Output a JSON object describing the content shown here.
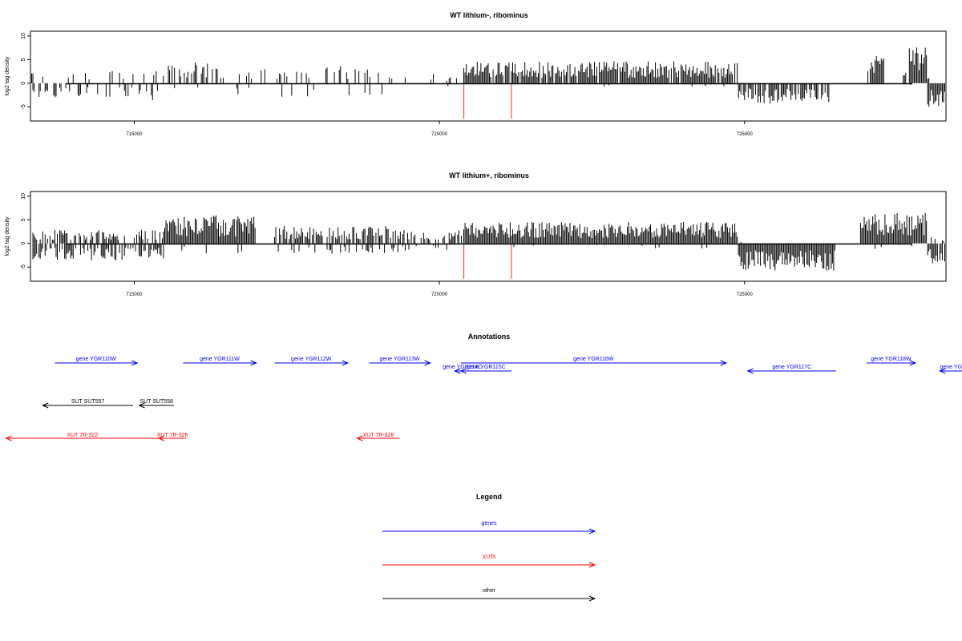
{
  "chart_data": [
    {
      "type": "bar",
      "title": "WT lithium-, ribominus",
      "ylabel": "log2 tag density",
      "xlim": [
        713300,
        728300
      ],
      "ylim": [
        -8,
        11
      ],
      "yticks": [
        -5,
        0,
        5,
        10
      ],
      "xticks": [
        715000,
        720000,
        725000
      ],
      "x_range": [
        713300,
        728300
      ],
      "markers": [
        720400,
        721180
      ],
      "segments": [
        {
          "start": 713300,
          "end": 715500,
          "prob": 0.1,
          "pos": 1.8,
          "neg": -2.5,
          "negprob": 0.35
        },
        {
          "start": 715500,
          "end": 716500,
          "prob": 0.45,
          "pos": 3.0,
          "neg": -0.8,
          "negprob": 0.05
        },
        {
          "start": 716500,
          "end": 719500,
          "prob": 0.25,
          "pos": 2.5,
          "neg": -2.0,
          "negprob": 0.1
        },
        {
          "start": 719500,
          "end": 720400,
          "prob": 0.15,
          "pos": 1.5,
          "neg": -1.0,
          "negprob": 0.05
        },
        {
          "start": 720400,
          "end": 724900,
          "prob": 0.9,
          "pos": 3.2,
          "neg": -0.5,
          "negprob": 0.02
        },
        {
          "start": 724900,
          "end": 726400,
          "prob": 0.0,
          "pos": 0.5,
          "neg": -3.0,
          "negprob": 0.8
        },
        {
          "start": 727000,
          "end": 727300,
          "prob": 0.9,
          "pos": 5.0,
          "neg": 0,
          "negprob": 0
        },
        {
          "start": 727300,
          "end": 727700,
          "prob": 0.2,
          "pos": 2.5,
          "neg": 0,
          "negprob": 0
        },
        {
          "start": 727700,
          "end": 728000,
          "prob": 1.0,
          "pos": 6.5,
          "neg": -0.5,
          "negprob": 0.05
        },
        {
          "start": 728000,
          "end": 728300,
          "prob": 0.1,
          "pos": 1.0,
          "neg": -3.5,
          "negprob": 0.85
        }
      ],
      "seed": 11
    },
    {
      "type": "bar",
      "title": "WT lithium+, ribominus",
      "ylabel": "log2 tag density",
      "xlim": [
        713300,
        728300
      ],
      "ylim": [
        -8,
        11
      ],
      "yticks": [
        -5,
        0,
        5,
        10
      ],
      "xticks": [
        715000,
        720000,
        725000
      ],
      "x_range": [
        713300,
        728300
      ],
      "markers": [
        720400,
        721180
      ],
      "segments": [
        {
          "start": 713300,
          "end": 715500,
          "prob": 0.55,
          "pos": 2.0,
          "neg": -2.5,
          "negprob": 0.65
        },
        {
          "start": 715500,
          "end": 717000,
          "prob": 1.0,
          "pos": 4.2,
          "neg": -1.5,
          "negprob": 0.1
        },
        {
          "start": 717300,
          "end": 719500,
          "prob": 0.8,
          "pos": 2.6,
          "neg": -1.5,
          "negprob": 0.3
        },
        {
          "start": 719500,
          "end": 720400,
          "prob": 0.55,
          "pos": 2.0,
          "neg": -1.0,
          "negprob": 0.15
        },
        {
          "start": 720400,
          "end": 724900,
          "prob": 1.0,
          "pos": 3.2,
          "neg": -0.8,
          "negprob": 0.05
        },
        {
          "start": 724900,
          "end": 726500,
          "prob": 0.05,
          "pos": 0.5,
          "neg": -4.0,
          "negprob": 1.0
        },
        {
          "start": 726900,
          "end": 728000,
          "prob": 1.0,
          "pos": 4.5,
          "neg": -0.8,
          "negprob": 0.05
        },
        {
          "start": 728000,
          "end": 728300,
          "prob": 0.2,
          "pos": 1.2,
          "neg": -3.0,
          "negprob": 0.9
        }
      ],
      "seed": 23
    }
  ],
  "annotations": {
    "title": "Annotations",
    "genes": [
      {
        "label": "gene YGR110W",
        "start": 713700,
        "end": 715050,
        "dir": "right",
        "row": 0
      },
      {
        "label": "gene YGR111W",
        "start": 715800,
        "end": 717000,
        "dir": "right",
        "row": 0
      },
      {
        "label": "gene YGR112W",
        "start": 717300,
        "end": 718500,
        "dir": "right",
        "row": 0
      },
      {
        "label": "gene YGR113W",
        "start": 718850,
        "end": 719850,
        "dir": "right",
        "row": 0
      },
      {
        "label": "gene YGR114C",
        "start": 720250,
        "end": 720500,
        "dir": "left",
        "row": 1
      },
      {
        "label": "gene YGR115C",
        "start": 720350,
        "end": 721180,
        "dir": "left",
        "row": 1
      },
      {
        "label": "gene YGR116W",
        "start": 720350,
        "end": 724700,
        "dir": "right",
        "row": 0
      },
      {
        "label": "gene YGR117C",
        "start": 725050,
        "end": 726500,
        "dir": "left",
        "row": 1
      },
      {
        "label": "gene YGR118W",
        "start": 727000,
        "end": 727800,
        "dir": "right",
        "row": 0
      },
      {
        "label": "gene YG",
        "start": 728200,
        "end": 729100,
        "dir": "left",
        "row": 1
      }
    ],
    "others": [
      {
        "label": "SUT SUT557",
        "start": 713500,
        "end": 714980,
        "dir": "left"
      },
      {
        "label": "SUT SUT558",
        "start": 715080,
        "end": 715650,
        "dir": "left"
      }
    ],
    "xuts": [
      {
        "label": "XUT 7R-322",
        "start": 712900,
        "end": 715400,
        "dir": "left"
      },
      {
        "label": "XUT 7R-326",
        "start": 715400,
        "end": 715850,
        "dir": "left"
      },
      {
        "label": "XUT 7R-328",
        "start": 718650,
        "end": 719350,
        "dir": "left"
      }
    ]
  },
  "legend": {
    "title": "Legend",
    "items": [
      {
        "label": "genes",
        "color": "#0000ff"
      },
      {
        "label": "XUTs",
        "color": "#ff0000"
      },
      {
        "label": "other",
        "color": "#000000"
      }
    ]
  },
  "colors": {
    "gene": "#0000ff",
    "xut": "#ff0000",
    "other": "#000000",
    "marker": "#ff4d4d"
  }
}
